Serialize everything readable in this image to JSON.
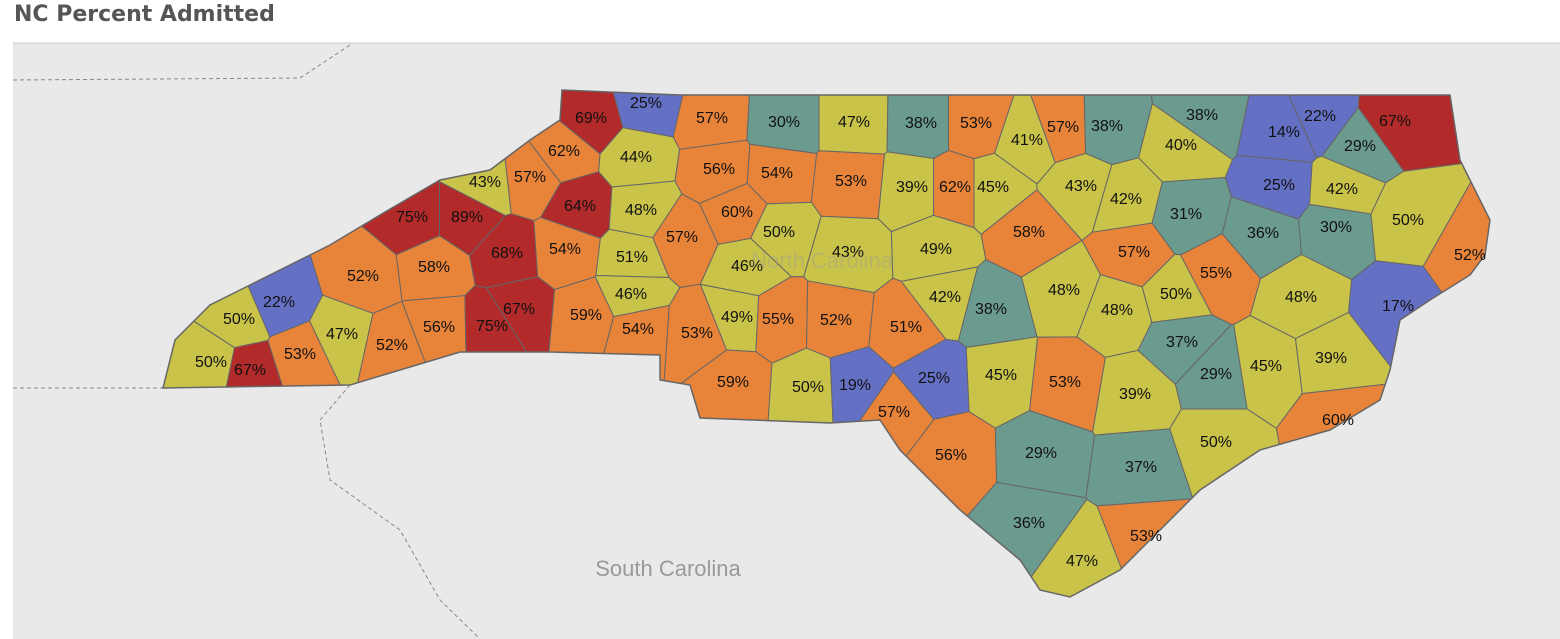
{
  "chart_data": {
    "type": "choropleth",
    "title": "NC Percent Admitted",
    "values": [
      25,
      69,
      57,
      30,
      47,
      38,
      53,
      41,
      57,
      38,
      38,
      22,
      67,
      14,
      29,
      62,
      44,
      40,
      56,
      54,
      53,
      39,
      62,
      45,
      43,
      42,
      25,
      57,
      43,
      64,
      42,
      48,
      75,
      89,
      60,
      31,
      36,
      30,
      50,
      57,
      50,
      43,
      49,
      58,
      52,
      68,
      54,
      51,
      46,
      57,
      55,
      52,
      58,
      22,
      46,
      42,
      48,
      50,
      48,
      17,
      50,
      47,
      67,
      59,
      54,
      53,
      49,
      55,
      52,
      51,
      38,
      48,
      37,
      56,
      75,
      52,
      53,
      50,
      67,
      45,
      39,
      29,
      45,
      53,
      25,
      59,
      50,
      19,
      39,
      57,
      60,
      50,
      56,
      29,
      37,
      36,
      53,
      47
    ],
    "value_labels": [
      "25%",
      "69%",
      "57%",
      "30%",
      "47%",
      "38%",
      "53%",
      "41%",
      "57%",
      "38%",
      "38%",
      "22%",
      "67%",
      "14%",
      "29%",
      "62%",
      "44%",
      "40%",
      "56%",
      "54%",
      "53%",
      "39%",
      "62%",
      "45%",
      "43%",
      "42%",
      "25%",
      "57%",
      "43%",
      "64%",
      "42%",
      "48%",
      "75%",
      "89%",
      "60%",
      "31%",
      "36%",
      "30%",
      "50%",
      "57%",
      "50%",
      "43%",
      "49%",
      "58%",
      "52%",
      "68%",
      "54%",
      "51%",
      "46%",
      "57%",
      "55%",
      "52%",
      "58%",
      "22%",
      "46%",
      "42%",
      "48%",
      "50%",
      "48%",
      "17%",
      "50%",
      "47%",
      "67%",
      "59%",
      "54%",
      "53%",
      "49%",
      "55%",
      "52%",
      "51%",
      "38%",
      "48%",
      "37%",
      "56%",
      "75%",
      "52%",
      "53%",
      "50%",
      "67%",
      "45%",
      "39%",
      "29%",
      "45%",
      "53%",
      "25%",
      "59%",
      "50%",
      "19%",
      "39%",
      "57%",
      "60%",
      "50%",
      "56%",
      "29%",
      "37%",
      "36%",
      "53%",
      "47%"
    ],
    "colors": [
      "#6470c4",
      "#b22a2a",
      "#e8843a",
      "#6b9a8f",
      "#c9c349",
      "#6b9a8f",
      "#e8843a",
      "#c9c349",
      "#e8843a",
      "#6b9a8f",
      "#6b9a8f",
      "#6470c4",
      "#b22a2a",
      "#6470c4",
      "#6b9a8f",
      "#e8843a",
      "#c9c349",
      "#c9c349",
      "#e8843a",
      "#e8843a",
      "#e8843a",
      "#c9c349",
      "#e8843a",
      "#c9c349",
      "#c9c349",
      "#c9c349",
      "#6470c4",
      "#e8843a",
      "#c9c349",
      "#b22a2a",
      "#c9c349",
      "#c9c349",
      "#b22a2a",
      "#b22a2a",
      "#e8843a",
      "#6b9a8f",
      "#6b9a8f",
      "#6b9a8f",
      "#c9c349",
      "#e8843a",
      "#c9c349",
      "#c9c349",
      "#c9c349",
      "#e8843a",
      "#e8843a",
      "#b22a2a",
      "#e8843a",
      "#c9c349",
      "#c9c349",
      "#e8843a",
      "#e8843a",
      "#e8843a",
      "#e8843a",
      "#6470c4",
      "#c9c349",
      "#c9c349",
      "#c9c349",
      "#c9c349",
      "#c9c349",
      "#6470c4",
      "#c9c349",
      "#c9c349",
      "#b22a2a",
      "#e8843a",
      "#e8843a",
      "#e8843a",
      "#c9c349",
      "#e8843a",
      "#e8843a",
      "#e8843a",
      "#6b9a8f",
      "#c9c349",
      "#6b9a8f",
      "#e8843a",
      "#b22a2a",
      "#e8843a",
      "#e8843a",
      "#c9c349",
      "#b22a2a",
      "#c9c349",
      "#c9c349",
      "#6b9a8f",
      "#c9c349",
      "#e8843a",
      "#6470c4",
      "#e8843a",
      "#c9c349",
      "#6470c4",
      "#c9c349",
      "#e8843a",
      "#e8843a",
      "#c9c349",
      "#e8843a",
      "#6b9a8f",
      "#6b9a8f",
      "#6b9a8f",
      "#e8843a",
      "#c9c349"
    ],
    "place_labels": [
      "North Carolina",
      "South Carolina"
    ]
  }
}
